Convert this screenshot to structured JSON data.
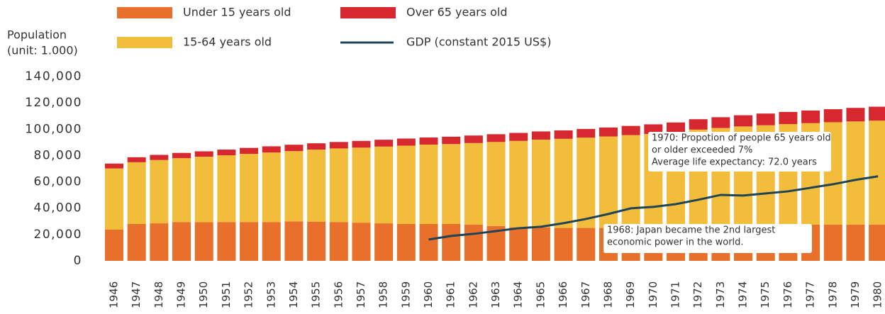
{
  "chart_data": {
    "type": "bar",
    "stacked": true,
    "y_axis_label": [
      "Population",
      "(unit: 1.000)"
    ],
    "categories": [
      "1946",
      "1947",
      "1948",
      "1949",
      "1950",
      "1951",
      "1952",
      "1953",
      "1954",
      "1955",
      "1956",
      "1957",
      "1958",
      "1959",
      "1960",
      "1961",
      "1962",
      "1963",
      "1964",
      "1965",
      "1966",
      "1967",
      "1968",
      "1969",
      "1970",
      "1971",
      "1972",
      "1973",
      "1974",
      "1975",
      "1976",
      "1977",
      "1978",
      "1979",
      "1980"
    ],
    "series": [
      {
        "name": "Under 15 years old",
        "color": "#e8702a",
        "values": [
          23700,
          28000,
          28500,
          29500,
          29400,
          29500,
          29500,
          29500,
          30000,
          29800,
          29500,
          29000,
          28500,
          28000,
          28000,
          28000,
          27500,
          26500,
          25500,
          25500,
          25000,
          25000,
          25000,
          25000,
          25000,
          25000,
          26000,
          26500,
          27000,
          27500,
          27500,
          27500,
          27500,
          27500,
          27500
        ]
      },
      {
        "name": "15-64 years old",
        "color": "#f2bd3a",
        "values": [
          46500,
          46900,
          48100,
          48500,
          49700,
          50700,
          51800,
          52800,
          53400,
          54700,
          55900,
          57000,
          58300,
          59500,
          60300,
          60700,
          62000,
          63800,
          65600,
          66600,
          67700,
          68600,
          69500,
          70500,
          71400,
          72500,
          73700,
          74400,
          75100,
          75500,
          76400,
          77100,
          77800,
          78400,
          79000
        ]
      },
      {
        "name": "Over 65 years old",
        "color": "#d7282f",
        "values": [
          3700,
          3800,
          3900,
          4000,
          4100,
          4300,
          4500,
          4700,
          4800,
          4800,
          4900,
          5100,
          5200,
          5400,
          5400,
          5600,
          5700,
          5900,
          6100,
          6200,
          6400,
          6600,
          6800,
          7000,
          7300,
          7600,
          7900,
          8200,
          8500,
          8900,
          9200,
          9600,
          9900,
          10300,
          10600
        ]
      },
      {
        "name": "GDP (constant 2015 US$)",
        "type": "line",
        "color": "#1f4457",
        "values": [
          null,
          null,
          null,
          null,
          null,
          null,
          null,
          null,
          null,
          null,
          null,
          null,
          null,
          null,
          16200,
          18900,
          20500,
          22600,
          24800,
          25900,
          28600,
          31800,
          35600,
          39900,
          41000,
          43100,
          46400,
          50100,
          49600,
          51200,
          52800,
          55500,
          58200,
          61500,
          64200
        ]
      }
    ],
    "ylim": [
      0,
      140000
    ],
    "yticks": [
      0,
      {
        "value": 20000,
        "label": "20,000"
      },
      {
        "value": 40000,
        "label": "40,000"
      },
      {
        "value": 60000,
        "label": "60,000"
      },
      {
        "value": 80000,
        "label": "80,000"
      },
      {
        "value": 100000,
        "label": "100,000"
      },
      {
        "value": 120000,
        "label": "120,000"
      },
      {
        "value": 140000,
        "label": "140,000"
      }
    ],
    "annotations": [
      {
        "lines": [
          "1970: Propotion of people 65 years old",
          "or older exceeded 7%",
          "Average life expectancy: 72.0 years"
        ]
      },
      {
        "lines": [
          "1968: Japan became the 2nd largest",
          "economic power in the world."
        ]
      }
    ]
  }
}
